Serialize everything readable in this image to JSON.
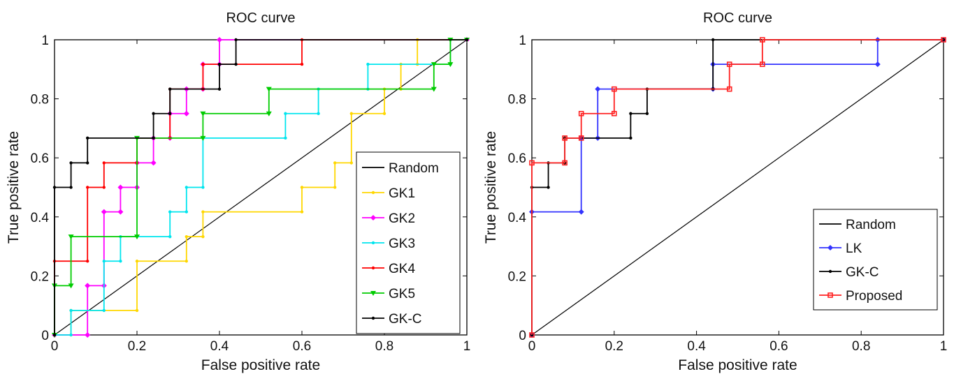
{
  "chart_data": [
    {
      "type": "line",
      "title": "ROC curve",
      "xlabel": "False positive rate",
      "ylabel": "True positive rate",
      "xlim": [
        0,
        1
      ],
      "ylim": [
        0,
        1
      ],
      "xticks": [
        "0",
        "0.2",
        "0.4",
        "0.6",
        "0.8",
        "1"
      ],
      "yticks": [
        "0",
        "0.2",
        "0.4",
        "0.6",
        "0.8",
        "1"
      ],
      "grid": false,
      "legend_position": "lower-right",
      "series": [
        {
          "name": "Random",
          "color": "#000000",
          "marker": "none",
          "points": [
            [
              0,
              0
            ],
            [
              1,
              1
            ]
          ]
        },
        {
          "name": "GK1",
          "color": "#ffd700",
          "marker": "dot",
          "points": [
            [
              0,
              0
            ],
            [
              0.04,
              0
            ],
            [
              0.04,
              0.083
            ],
            [
              0.2,
              0.083
            ],
            [
              0.2,
              0.25
            ],
            [
              0.32,
              0.25
            ],
            [
              0.32,
              0.333
            ],
            [
              0.36,
              0.333
            ],
            [
              0.36,
              0.417
            ],
            [
              0.6,
              0.417
            ],
            [
              0.6,
              0.5
            ],
            [
              0.68,
              0.5
            ],
            [
              0.68,
              0.583
            ],
            [
              0.72,
              0.583
            ],
            [
              0.72,
              0.75
            ],
            [
              0.8,
              0.75
            ],
            [
              0.8,
              0.833
            ],
            [
              0.84,
              0.833
            ],
            [
              0.84,
              0.917
            ],
            [
              0.88,
              0.917
            ],
            [
              0.88,
              1
            ],
            [
              1,
              1
            ]
          ]
        },
        {
          "name": "GK2",
          "color": "#ff00ff",
          "marker": "diamond",
          "points": [
            [
              0,
              0
            ],
            [
              0.08,
              0
            ],
            [
              0.08,
              0.167
            ],
            [
              0.12,
              0.167
            ],
            [
              0.12,
              0.417
            ],
            [
              0.16,
              0.417
            ],
            [
              0.16,
              0.5
            ],
            [
              0.2,
              0.5
            ],
            [
              0.2,
              0.583
            ],
            [
              0.24,
              0.583
            ],
            [
              0.24,
              0.667
            ],
            [
              0.28,
              0.667
            ],
            [
              0.28,
              0.75
            ],
            [
              0.32,
              0.75
            ],
            [
              0.32,
              0.833
            ],
            [
              0.36,
              0.833
            ],
            [
              0.36,
              0.917
            ],
            [
              0.4,
              0.917
            ],
            [
              0.4,
              1
            ],
            [
              1,
              1
            ]
          ]
        },
        {
          "name": "GK3",
          "color": "#00e5ee",
          "marker": "dot",
          "points": [
            [
              0,
              0
            ],
            [
              0.04,
              0
            ],
            [
              0.04,
              0.083
            ],
            [
              0.12,
              0.083
            ],
            [
              0.12,
              0.25
            ],
            [
              0.16,
              0.25
            ],
            [
              0.16,
              0.333
            ],
            [
              0.28,
              0.333
            ],
            [
              0.28,
              0.417
            ],
            [
              0.32,
              0.417
            ],
            [
              0.32,
              0.5
            ],
            [
              0.36,
              0.5
            ],
            [
              0.36,
              0.667
            ],
            [
              0.56,
              0.667
            ],
            [
              0.56,
              0.75
            ],
            [
              0.64,
              0.75
            ],
            [
              0.64,
              0.833
            ],
            [
              0.76,
              0.833
            ],
            [
              0.76,
              0.917
            ],
            [
              0.96,
              0.917
            ],
            [
              0.96,
              1
            ],
            [
              1,
              1
            ]
          ]
        },
        {
          "name": "GK4",
          "color": "#ff0000",
          "marker": "dot",
          "points": [
            [
              0,
              0
            ],
            [
              0,
              0.25
            ],
            [
              0.08,
              0.25
            ],
            [
              0.08,
              0.5
            ],
            [
              0.12,
              0.5
            ],
            [
              0.12,
              0.583
            ],
            [
              0.2,
              0.583
            ],
            [
              0.2,
              0.667
            ],
            [
              0.28,
              0.667
            ],
            [
              0.28,
              0.833
            ],
            [
              0.36,
              0.833
            ],
            [
              0.36,
              0.917
            ],
            [
              0.6,
              0.917
            ],
            [
              0.6,
              1
            ],
            [
              1,
              1
            ]
          ]
        },
        {
          "name": "GK5",
          "color": "#00cc00",
          "marker": "triangle-down",
          "points": [
            [
              0,
              0
            ],
            [
              0,
              0.167
            ],
            [
              0.04,
              0.167
            ],
            [
              0.04,
              0.333
            ],
            [
              0.2,
              0.333
            ],
            [
              0.2,
              0.667
            ],
            [
              0.36,
              0.667
            ],
            [
              0.36,
              0.75
            ],
            [
              0.52,
              0.75
            ],
            [
              0.52,
              0.833
            ],
            [
              0.92,
              0.833
            ],
            [
              0.92,
              0.917
            ],
            [
              0.96,
              0.917
            ],
            [
              0.96,
              1
            ],
            [
              1,
              1
            ]
          ]
        },
        {
          "name": "GK-C",
          "color": "#000000",
          "marker": "dot",
          "points": [
            [
              0,
              0
            ],
            [
              0,
              0.5
            ],
            [
              0.04,
              0.5
            ],
            [
              0.04,
              0.583
            ],
            [
              0.08,
              0.583
            ],
            [
              0.08,
              0.667
            ],
            [
              0.24,
              0.667
            ],
            [
              0.24,
              0.75
            ],
            [
              0.28,
              0.75
            ],
            [
              0.28,
              0.833
            ],
            [
              0.4,
              0.833
            ],
            [
              0.4,
              0.917
            ],
            [
              0.44,
              0.917
            ],
            [
              0.44,
              1
            ],
            [
              1,
              1
            ]
          ]
        }
      ]
    },
    {
      "type": "line",
      "title": "ROC curve",
      "xlabel": "False positive rate",
      "ylabel": "True positive rate",
      "xlim": [
        0,
        1
      ],
      "ylim": [
        0,
        1
      ],
      "xticks": [
        "0",
        "0.2",
        "0.4",
        "0.6",
        "0.8",
        "1"
      ],
      "yticks": [
        "0",
        "0.2",
        "0.4",
        "0.6",
        "0.8",
        "1"
      ],
      "grid": false,
      "legend_position": "lower-right",
      "series": [
        {
          "name": "Random",
          "color": "#000000",
          "marker": "none",
          "points": [
            [
              0,
              0
            ],
            [
              1,
              1
            ]
          ]
        },
        {
          "name": "LK",
          "color": "#3333ff",
          "marker": "diamond",
          "points": [
            [
              0,
              0
            ],
            [
              0,
              0.417
            ],
            [
              0.12,
              0.417
            ],
            [
              0.12,
              0.667
            ],
            [
              0.16,
              0.667
            ],
            [
              0.16,
              0.833
            ],
            [
              0.44,
              0.833
            ],
            [
              0.44,
              0.917
            ],
            [
              0.84,
              0.917
            ],
            [
              0.84,
              1
            ],
            [
              1,
              1
            ]
          ]
        },
        {
          "name": "GK-C",
          "color": "#000000",
          "marker": "dot",
          "points": [
            [
              0,
              0
            ],
            [
              0,
              0.5
            ],
            [
              0.04,
              0.5
            ],
            [
              0.04,
              0.583
            ],
            [
              0.08,
              0.583
            ],
            [
              0.08,
              0.667
            ],
            [
              0.24,
              0.667
            ],
            [
              0.24,
              0.75
            ],
            [
              0.28,
              0.75
            ],
            [
              0.28,
              0.833
            ],
            [
              0.44,
              0.833
            ],
            [
              0.44,
              1
            ],
            [
              1,
              1
            ]
          ]
        },
        {
          "name": "Proposed",
          "color": "#ff2020",
          "marker": "square",
          "points": [
            [
              0,
              0
            ],
            [
              0,
              0.583
            ],
            [
              0.08,
              0.583
            ],
            [
              0.08,
              0.667
            ],
            [
              0.12,
              0.667
            ],
            [
              0.12,
              0.75
            ],
            [
              0.2,
              0.75
            ],
            [
              0.2,
              0.833
            ],
            [
              0.48,
              0.833
            ],
            [
              0.48,
              0.917
            ],
            [
              0.56,
              0.917
            ],
            [
              0.56,
              1
            ],
            [
              1,
              1
            ]
          ]
        }
      ]
    }
  ]
}
